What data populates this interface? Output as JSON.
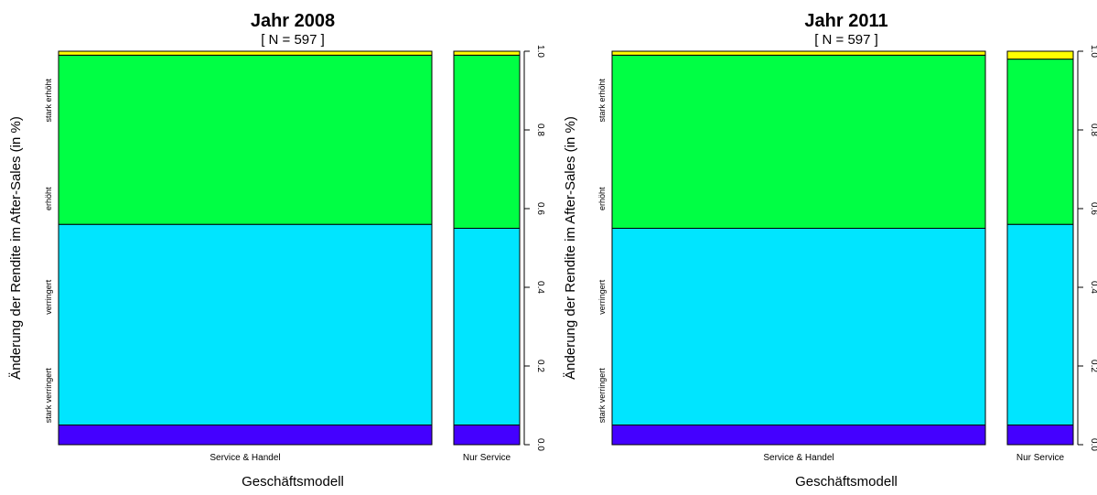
{
  "chart_data": [
    {
      "type": "bar",
      "subtype": "spineplot",
      "title": "Jahr 2008",
      "subtitle": "[ N =  597 ]",
      "xlabel": "Geschäftsmodell",
      "ylabel": "Änderung der Rendite im After-Sales (in %)",
      "categories": [
        "Service & Handel",
        "Nur Service"
      ],
      "category_shares": [
        0.85,
        0.15
      ],
      "levels": [
        "stark verringert",
        "verringert",
        "erhöht",
        "stark erhöht"
      ],
      "level_colors": [
        "#4400ff",
        "#00e5ff",
        "#00ff44",
        "#ffff00"
      ],
      "series": [
        {
          "name": "stark verringert",
          "values": [
            0.05,
            0.05
          ]
        },
        {
          "name": "verringert",
          "values": [
            0.51,
            0.5
          ]
        },
        {
          "name": "erhöht",
          "values": [
            0.43,
            0.44
          ]
        },
        {
          "name": "stark erhöht",
          "values": [
            0.01,
            0.01
          ]
        }
      ],
      "right_axis_ticks": [
        "0.0",
        "0.2",
        "0.4",
        "0.6",
        "0.8",
        "1.0"
      ],
      "ylim": [
        0,
        1
      ],
      "grid": false
    },
    {
      "type": "bar",
      "subtype": "spineplot",
      "title": "Jahr 2011",
      "subtitle": "[ N =  597 ]",
      "xlabel": "Geschäftsmodell",
      "ylabel": "Änderung der Rendite im After-Sales (in %)",
      "categories": [
        "Service & Handel",
        "Nur Service"
      ],
      "category_shares": [
        0.85,
        0.15
      ],
      "levels": [
        "stark verringert",
        "verringert",
        "erhöht",
        "stark erhöht"
      ],
      "level_colors": [
        "#4400ff",
        "#00e5ff",
        "#00ff44",
        "#ffff00"
      ],
      "series": [
        {
          "name": "stark verringert",
          "values": [
            0.05,
            0.05
          ]
        },
        {
          "name": "verringert",
          "values": [
            0.5,
            0.51
          ]
        },
        {
          "name": "erhöht",
          "values": [
            0.44,
            0.42
          ]
        },
        {
          "name": "stark erhöht",
          "values": [
            0.01,
            0.02
          ]
        }
      ],
      "right_axis_ticks": [
        "0.0",
        "0.2",
        "0.4",
        "0.6",
        "0.8",
        "1.0"
      ],
      "ylim": [
        0,
        1
      ],
      "grid": false
    }
  ]
}
